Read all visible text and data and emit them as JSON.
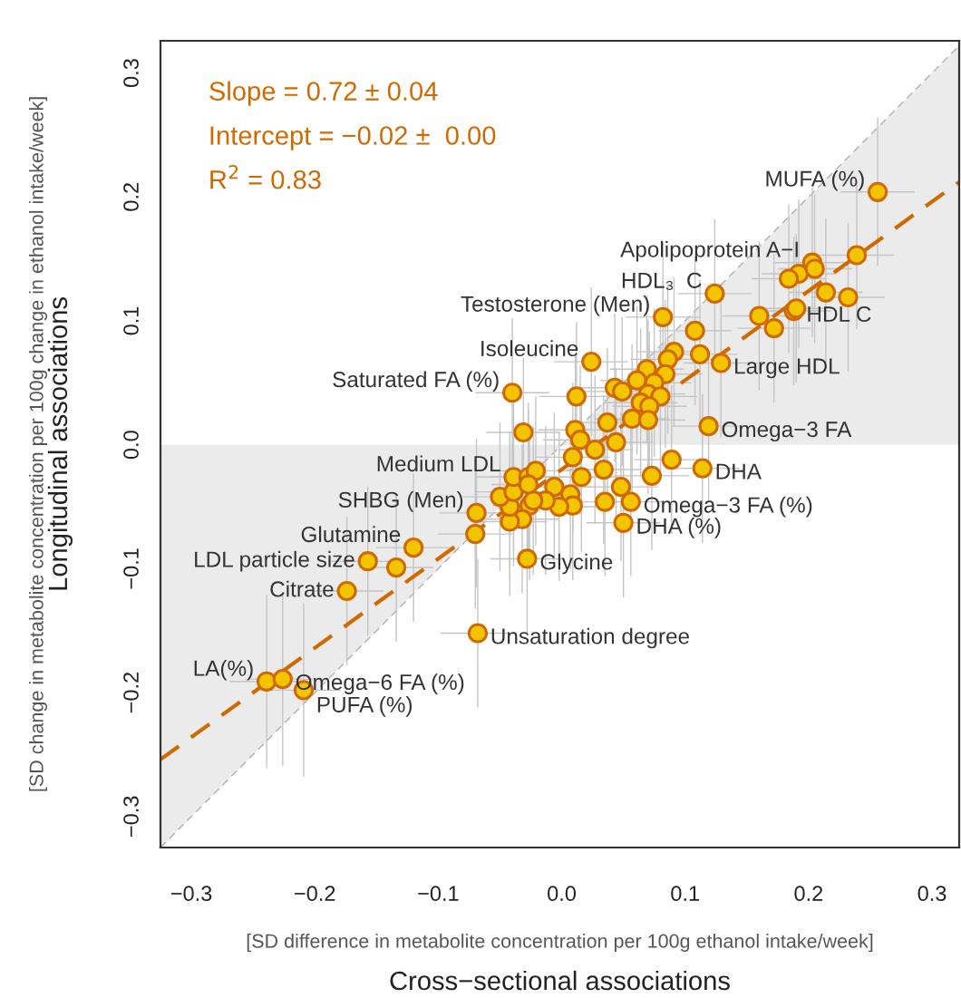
{
  "chart_data": {
    "type": "scatter",
    "xlabel": "Cross−sectional associations",
    "ylabel": "Longitudinal associations",
    "xlim": [
      -0.325,
      0.322
    ],
    "ylim": [
      -0.325,
      0.326
    ],
    "xticks": [
      {
        "value": -0.3,
        "label": "−0.3"
      },
      {
        "value": -0.2,
        "label": "−0.2"
      },
      {
        "value": -0.1,
        "label": "−0.1"
      },
      {
        "value": 0.0,
        "label": "0.0"
      },
      0.1,
      0.2,
      0.3
    ],
    "yticks": [
      {
        "value": -0.3,
        "label": "−0.3"
      },
      {
        "value": -0.2,
        "label": "−0.2"
      },
      {
        "value": -0.1,
        "label": "−0.1"
      },
      {
        "value": 0.0,
        "label": "0.0"
      },
      0.1,
      0.2,
      0.3
    ],
    "grid": false,
    "series": [
      {
        "type": "area",
        "color": "#ebebeb",
        "line_style": "dashed",
        "x": [
          -0.325,
          0.322
        ],
        "values": [
          -0.325,
          0.322
        ]
      },
      {
        "type": "line",
        "color": "#d06a00",
        "line_style": "dashed",
        "x": [
          -0.325,
          0.322
        ],
        "values": [
          -0.254,
          0.212
        ]
      },
      {
        "color": "#f2c500",
        "marker": "circle",
        "x": [
          0.256,
          0.203,
          0.192,
          0.184,
          0.205,
          0.239,
          0.214,
          0.232,
          0.16,
          0.172,
          0.188,
          0.19,
          0.124,
          0.082,
          0.129,
          0.108,
          0.112,
          0.091,
          0.086,
          0.084,
          0.069,
          0.061,
          0.075,
          0.07,
          0.08,
          0.064,
          0.071,
          0.043,
          0.049,
          0.057,
          0.07,
          0.024,
          -0.04,
          0.012,
          -0.031,
          0.011,
          0.015,
          0.027,
          0.009,
          0.037,
          0.044,
          0.034,
          0.016,
          0.048,
          0.035,
          0.073,
          0.089,
          0.119,
          0.114,
          0.056,
          0.05,
          -0.006,
          0.007,
          0.009,
          -0.002,
          -0.013,
          -0.026,
          -0.023,
          -0.032,
          -0.042,
          -0.042,
          -0.05,
          -0.039,
          -0.039,
          -0.027,
          -0.021,
          -0.027,
          -0.069,
          -0.07,
          -0.028,
          -0.068,
          -0.12,
          -0.157,
          -0.134,
          -0.174,
          -0.239,
          -0.226,
          -0.209
        ],
        "values": [
          0.204,
          0.147,
          0.138,
          0.134,
          0.142,
          0.153,
          0.123,
          0.119,
          0.104,
          0.094,
          0.108,
          0.11,
          0.122,
          0.103,
          0.066,
          0.092,
          0.073,
          0.075,
          0.069,
          0.057,
          0.061,
          0.052,
          0.05,
          0.041,
          0.039,
          0.034,
          0.031,
          0.046,
          0.043,
          0.021,
          0.02,
          0.067,
          0.042,
          0.039,
          0.01,
          0.012,
          0.004,
          -0.004,
          -0.01,
          0.018,
          0.002,
          -0.02,
          -0.026,
          -0.034,
          -0.046,
          -0.025,
          -0.012,
          0.015,
          -0.019,
          -0.046,
          -0.063,
          -0.034,
          -0.04,
          -0.049,
          -0.05,
          -0.045,
          -0.049,
          -0.045,
          -0.06,
          -0.062,
          -0.05,
          -0.042,
          -0.038,
          -0.026,
          -0.026,
          -0.021,
          -0.032,
          -0.055,
          -0.072,
          -0.092,
          -0.152,
          -0.083,
          -0.094,
          -0.099,
          -0.118,
          -0.191,
          -0.189,
          -0.198
        ],
        "xerrors": [
          0.03,
          0.03,
          0.03,
          0.03,
          0.03,
          0.03,
          0.03,
          0.03,
          0.03,
          0.03,
          0.03,
          0.03,
          0.03,
          0.03,
          0.03,
          0.03,
          0.03,
          0.03,
          0.03,
          0.03,
          0.03,
          0.03,
          0.03,
          0.03,
          0.03,
          0.03,
          0.03,
          0.03,
          0.03,
          0.03,
          0.03,
          0.03,
          0.03,
          0.03,
          0.03,
          0.03,
          0.03,
          0.03,
          0.03,
          0.03,
          0.03,
          0.03,
          0.03,
          0.03,
          0.03,
          0.03,
          0.03,
          0.03,
          0.03,
          0.03,
          0.03,
          0.03,
          null,
          null,
          0.03,
          0.03,
          0.03,
          null,
          0.03,
          0.03,
          null,
          0.03,
          0.03,
          0.03,
          0.03,
          0.03,
          0.03,
          0.03,
          0.03,
          0.03,
          0.03,
          0.03,
          0.03,
          0.03,
          0.03,
          0.03,
          0.03,
          0.03
        ],
        "errors": [
          0.06,
          0.06,
          0.06,
          0.06,
          0.06,
          0.06,
          0.06,
          0.06,
          0.06,
          0.06,
          0.06,
          0.06,
          0.06,
          0.06,
          0.06,
          0.06,
          0.06,
          0.06,
          0.06,
          0.06,
          0.06,
          0.06,
          0.06,
          0.06,
          0.06,
          0.06,
          0.06,
          0.06,
          0.06,
          0.06,
          0.06,
          0.06,
          0.06,
          0.06,
          0.06,
          0.06,
          0.06,
          0.06,
          0.06,
          0.06,
          0.06,
          0.06,
          0.06,
          0.06,
          0.06,
          0.06,
          0.06,
          0.06,
          0.06,
          0.06,
          0.06,
          0.06,
          0.06,
          0.06,
          0.06,
          0.06,
          0.06,
          0.06,
          0.06,
          0.06,
          0.06,
          0.06,
          0.06,
          0.06,
          0.06,
          0.06,
          0.06,
          0.06,
          0.06,
          0.06,
          0.06,
          0.06,
          0.06,
          0.06,
          0.06,
          0.07,
          0.07,
          0.07
        ]
      }
    ],
    "annotations": [
      "Slope = 0.72 ± 0.04",
      "Intercept = −0.02 ±  0.00",
      "R$^{2}$ = 0.83",
      "[SD difference in metabolite concentration per 100g ethanol intake/week]",
      "[SD change in metabolite concentration per 100g change in ethanol intake/week]",
      {
        "text": "MUFA (%)",
        "x": 0.256,
        "y": 0.204
      },
      {
        "text": "Apolipoprotein A−I",
        "x": 0.203,
        "y": 0.147
      },
      {
        "text": "HDL₃  C",
        "x": 0.124,
        "y": 0.122
      },
      {
        "text": "Testosterone (Men)",
        "x": 0.082,
        "y": 0.103
      },
      {
        "text": "HDL C",
        "x": 0.188,
        "y": 0.108
      },
      {
        "text": "Large HDL",
        "x": 0.129,
        "y": 0.066
      },
      {
        "text": "Isoleucine",
        "x": 0.024,
        "y": 0.067
      },
      {
        "text": "Saturated FA (%)",
        "x": -0.04,
        "y": 0.042
      },
      {
        "text": "Omega−3 FA",
        "x": 0.119,
        "y": 0.015
      },
      {
        "text": "DHA",
        "x": 0.114,
        "y": -0.019
      },
      {
        "text": "Medium LDL",
        "x": -0.039,
        "y": -0.026
      },
      {
        "text": "Omega−3 FA (%)",
        "x": 0.056,
        "y": -0.046
      },
      {
        "text": "DHA (%)",
        "x": 0.05,
        "y": -0.063
      },
      {
        "text": "SHBG (Men)",
        "x": -0.069,
        "y": -0.055
      },
      {
        "text": "Glutamine",
        "x": -0.12,
        "y": -0.083
      },
      {
        "text": "LDL particle size",
        "x": -0.157,
        "y": -0.094
      },
      {
        "text": "Glycine",
        "x": -0.028,
        "y": -0.092
      },
      {
        "text": "Citrate",
        "x": -0.174,
        "y": -0.118
      },
      {
        "text": "Unsaturation degree",
        "x": -0.068,
        "y": -0.152
      },
      {
        "text": "LA(%)",
        "x": -0.239,
        "y": -0.191
      },
      {
        "text": "Omega−6 FA (%)",
        "x": -0.226,
        "y": -0.189
      },
      {
        "text": "PUFA (%)",
        "x": -0.209,
        "y": -0.198
      }
    ]
  }
}
